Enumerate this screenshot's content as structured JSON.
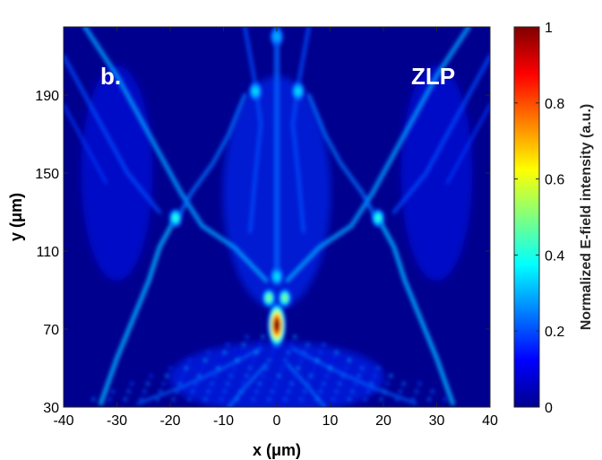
{
  "chart_data": {
    "type": "heatmap",
    "panel_label": "b.",
    "annotation": "ZLP",
    "xlabel": "x (μm)",
    "ylabel": "y (μm)",
    "xlim": [
      -40,
      40
    ],
    "ylim": [
      30,
      225
    ],
    "x_ticks": [
      -40,
      -30,
      -20,
      -10,
      0,
      10,
      20,
      30,
      40
    ],
    "y_ticks": [
      30,
      70,
      110,
      150,
      190
    ],
    "colorbar": {
      "label": "Normalized E-field intensity (a.u.)",
      "range": [
        0,
        1
      ],
      "ticks": [
        0,
        0.2,
        0.4,
        0.6,
        0.8,
        1
      ],
      "colormap": "jet"
    },
    "features": [
      {
        "x": 0,
        "y": 72,
        "intensity": 1.0
      },
      {
        "x": -1.5,
        "y": 86,
        "intensity": 0.5
      },
      {
        "x": 1.5,
        "y": 86,
        "intensity": 0.5
      },
      {
        "x": 0,
        "y": 97,
        "intensity": 0.35
      },
      {
        "x": -19,
        "y": 127,
        "intensity": 0.42
      },
      {
        "x": 19,
        "y": 127,
        "intensity": 0.42
      },
      {
        "x": -4,
        "y": 192,
        "intensity": 0.35
      },
      {
        "x": 4,
        "y": 192,
        "intensity": 0.35
      },
      {
        "x": 0,
        "y": 220,
        "intensity": 0.3
      }
    ]
  }
}
